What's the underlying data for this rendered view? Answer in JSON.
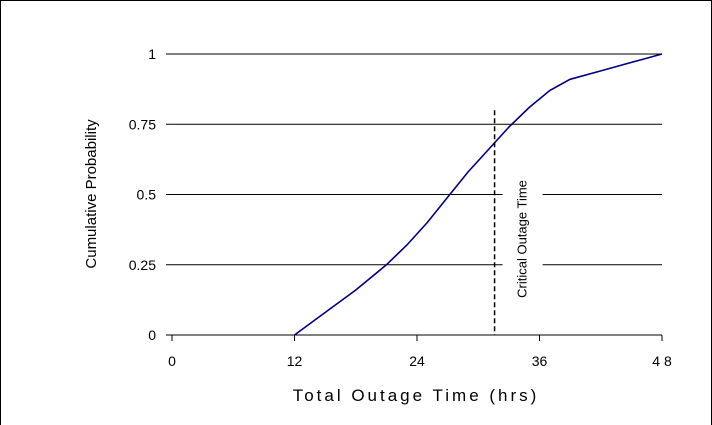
{
  "chart_data": {
    "type": "line",
    "xlabel": "Total Outage Time (hrs)",
    "ylabel": "Cumulative Probability",
    "xlim": [
      0,
      48
    ],
    "ylim": [
      0,
      1
    ],
    "x_ticks": [
      0,
      12,
      24,
      36,
      48
    ],
    "x_tick_labels": [
      "0",
      "12",
      "24",
      "36",
      "4 8"
    ],
    "y_ticks": [
      0,
      0.25,
      0.5,
      0.75,
      1
    ],
    "y_tick_labels": [
      "0",
      "0.25",
      "0.5",
      "0.75",
      "1"
    ],
    "grid": "horizontal",
    "series": [
      {
        "color": "#000080",
        "x": [
          12,
          15,
          18,
          21,
          23,
          25,
          27,
          29,
          31,
          33,
          35,
          36,
          37,
          39,
          42,
          45,
          48
        ],
        "y": [
          0,
          0.08,
          0.16,
          0.25,
          0.32,
          0.4,
          0.49,
          0.58,
          0.66,
          0.74,
          0.81,
          0.84,
          0.87,
          0.91,
          0.94,
          0.97,
          1.0
        ]
      }
    ],
    "annotations": [
      {
        "text": "Critical Outage Time",
        "x": 31.6,
        "line_style": "dashed",
        "y_top": 0.8
      }
    ]
  }
}
